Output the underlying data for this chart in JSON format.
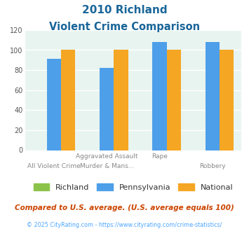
{
  "title_line1": "2010 Richland",
  "title_line2": "Violent Crime Comparison",
  "n_groups": 4,
  "richland_vals": [
    0,
    0,
    0,
    0
  ],
  "pennsylvania_vals": [
    91,
    82,
    108,
    108
  ],
  "national_vals": [
    100,
    100,
    100,
    100
  ],
  "bar_width": 0.27,
  "ylim": [
    0,
    120
  ],
  "yticks": [
    0,
    20,
    40,
    60,
    80,
    100,
    120
  ],
  "bar_colors": {
    "richland": "#8bc34a",
    "pennsylvania": "#4d9fea",
    "national": "#f5a623"
  },
  "bg_color": "#e8f4f0",
  "title_color": "#1a6699",
  "row1_labels": [
    "",
    "Aggravated Assault",
    "Rape",
    ""
  ],
  "row2_labels": [
    "All Violent Crime",
    "Murder & Mans...",
    "",
    "Robbery"
  ],
  "legend_labels": [
    "Richland",
    "Pennsylvania",
    "National"
  ],
  "footnote1": "Compared to U.S. average. (U.S. average equals 100)",
  "footnote2": "© 2025 CityRating.com - https://www.cityrating.com/crime-statistics/",
  "footnote1_color": "#cc4400",
  "footnote2_color": "#4da6ff",
  "tick_color": "#aaaaaa"
}
